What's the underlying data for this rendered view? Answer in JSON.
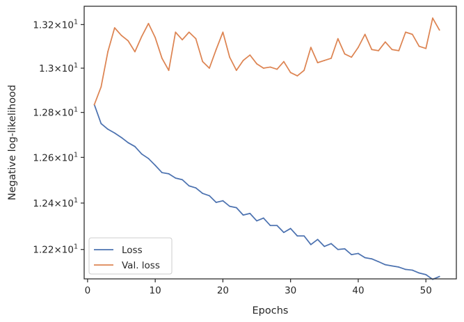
{
  "chart_data": {
    "type": "line",
    "xlabel": "Epochs",
    "ylabel": "Negative log-likelihood",
    "yscale": "log",
    "xlim": [
      -0.5,
      54.5
    ],
    "ylim": [
      12.075,
      13.285
    ],
    "grid": false,
    "legend_position": "lower-left",
    "x_ticks": [
      0,
      10,
      20,
      30,
      40,
      50
    ],
    "x_tick_labels": [
      "0",
      "10",
      "20",
      "30",
      "40",
      "50"
    ],
    "y_ticks": [
      12.2,
      12.4,
      12.6,
      12.8,
      13.0,
      13.2
    ],
    "y_tick_labels": [
      {
        "mantissa": "1.22",
        "exp": "1"
      },
      {
        "mantissa": "1.24",
        "exp": "1"
      },
      {
        "mantissa": "1.26",
        "exp": "1"
      },
      {
        "mantissa": "1.28",
        "exp": "1"
      },
      {
        "mantissa": "1.3",
        "exp": "1"
      },
      {
        "mantissa": "1.32",
        "exp": "1"
      }
    ],
    "x": [
      1,
      2,
      3,
      4,
      5,
      6,
      7,
      8,
      9,
      10,
      11,
      12,
      13,
      14,
      15,
      16,
      17,
      18,
      19,
      20,
      21,
      22,
      23,
      24,
      25,
      26,
      27,
      28,
      29,
      30,
      31,
      32,
      33,
      34,
      35,
      36,
      37,
      38,
      39,
      40,
      41,
      42,
      43,
      44,
      45,
      46,
      47,
      48,
      49,
      50,
      51,
      52
    ],
    "series": [
      {
        "name": "Loss",
        "color": "#4c72b0",
        "values": [
          12.835,
          12.75,
          12.725,
          12.708,
          12.688,
          12.665,
          12.648,
          12.615,
          12.595,
          12.565,
          12.533,
          12.528,
          12.509,
          12.502,
          12.475,
          12.466,
          12.442,
          12.432,
          12.403,
          12.41,
          12.386,
          12.38,
          12.348,
          12.355,
          12.323,
          12.335,
          12.303,
          12.303,
          12.273,
          12.29,
          12.258,
          12.258,
          12.221,
          12.243,
          12.213,
          12.225,
          12.2,
          12.203,
          12.178,
          12.183,
          12.165,
          12.16,
          12.148,
          12.135,
          12.13,
          12.125,
          12.115,
          12.112,
          12.1,
          12.093,
          12.073,
          12.085
        ]
      },
      {
        "name": "Val. loss",
        "color": "#dd8452",
        "values": [
          12.835,
          12.915,
          13.075,
          13.185,
          13.15,
          13.125,
          13.075,
          13.145,
          13.205,
          13.14,
          13.045,
          12.99,
          13.165,
          13.13,
          13.165,
          13.135,
          13.03,
          13.0,
          13.085,
          13.165,
          13.05,
          12.99,
          13.035,
          13.06,
          13.02,
          13.0,
          13.005,
          12.995,
          13.03,
          12.98,
          12.965,
          12.99,
          13.095,
          13.025,
          13.035,
          13.045,
          13.135,
          13.065,
          13.05,
          13.095,
          13.155,
          13.085,
          13.08,
          13.12,
          13.085,
          13.08,
          13.165,
          13.155,
          13.1,
          13.09,
          13.23,
          13.175
        ]
      }
    ]
  }
}
